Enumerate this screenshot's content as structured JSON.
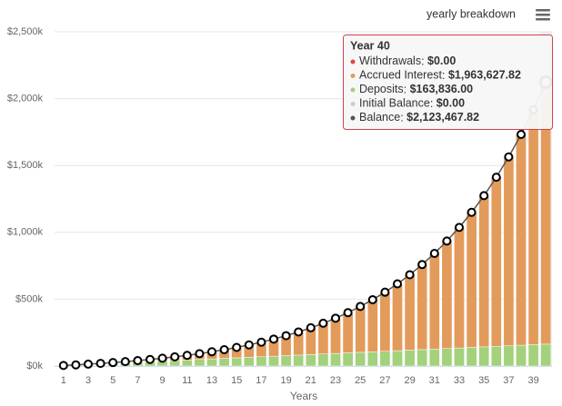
{
  "chart_data": {
    "type": "bar",
    "title": "yearly breakdown",
    "x_label": "Years",
    "categories": [
      1,
      null,
      3,
      null,
      5,
      null,
      7,
      null,
      9,
      null,
      11,
      null,
      13,
      null,
      15,
      null,
      17,
      null,
      19,
      null,
      21,
      null,
      23,
      null,
      25,
      null,
      27,
      null,
      29,
      null,
      31,
      null,
      33,
      null,
      35,
      null,
      37,
      null,
      39,
      null
    ],
    "ylim": [
      0,
      2500000
    ],
    "yticks": [
      {
        "value": 0,
        "label": "$0k"
      },
      {
        "value": 500000,
        "label": "$500k"
      },
      {
        "value": 1000000,
        "label": "$1,000k"
      },
      {
        "value": 1500000,
        "label": "$1,500k"
      },
      {
        "value": 2000000,
        "label": "$2,000k"
      },
      {
        "value": 2500000,
        "label": "$2,500k"
      }
    ],
    "grid": true,
    "series": [
      {
        "name": "Withdrawals",
        "color": "#e4463c",
        "kind": "bar",
        "values": [
          0,
          0,
          0,
          0,
          0,
          0,
          0,
          0,
          0,
          0,
          0,
          0,
          0,
          0,
          0,
          0,
          0,
          0,
          0,
          0,
          0,
          0,
          0,
          0,
          0,
          0,
          0,
          0,
          0,
          0,
          0,
          0,
          0,
          0,
          0,
          0,
          0,
          0,
          0,
          0
        ]
      },
      {
        "name": "Accrued Interest",
        "color": "#e39b5b",
        "kind": "bar",
        "values": [
          124,
          688,
          1742,
          3336,
          5500,
          8364,
          11938,
          16312,
          21576,
          27820,
          35144,
          43658,
          53502,
          64796,
          77710,
          92404,
          109068,
          127892,
          149136,
          173020,
          199834,
          229888,
          263512,
          301096,
          343000,
          389804,
          441808,
          499812,
          564316,
          635920,
          715524,
          803928,
          901832,
          1010636,
          1131140,
          1264644,
          1412648,
          1576552,
          1758056,
          1963627.82
        ]
      },
      {
        "name": "Deposits",
        "color": "#a3d17c",
        "kind": "bar",
        "values": [
          4096,
          8192,
          12288,
          16384,
          20480,
          24576,
          28672,
          32768,
          36864,
          40960,
          45056,
          49152,
          53248,
          57344,
          61440,
          65536,
          69632,
          73728,
          77824,
          81920,
          86016,
          90112,
          94208,
          98304,
          102400,
          106496,
          110592,
          114688,
          118784,
          122880,
          126976,
          131072,
          135168,
          139264,
          143360,
          147456,
          151552,
          155648,
          159744,
          163836
        ]
      },
      {
        "name": "Initial Balance",
        "color": "#cccccc",
        "kind": "bar",
        "values": [
          0,
          0,
          0,
          0,
          0,
          0,
          0,
          0,
          0,
          0,
          0,
          0,
          0,
          0,
          0,
          0,
          0,
          0,
          0,
          0,
          0,
          0,
          0,
          0,
          0,
          0,
          0,
          0,
          0,
          0,
          0,
          0,
          0,
          0,
          0,
          0,
          0,
          0,
          0,
          0
        ]
      },
      {
        "name": "Balance",
        "color": "#555555",
        "kind": "line",
        "values": [
          4220,
          8880,
          14030,
          19720,
          25980,
          32940,
          40610,
          49080,
          58440,
          68780,
          80200,
          92810,
          106750,
          122140,
          139150,
          157940,
          178700,
          201620,
          226960,
          254940,
          285850,
          320000,
          357720,
          399400,
          445400,
          496300,
          552400,
          614500,
          683100,
          758800,
          842500,
          935000,
          1037000,
          1149900,
          1274500,
          1412100,
          1564200,
          1732200,
          1917800,
          2123467.82
        ]
      }
    ],
    "tooltip": {
      "title": "Year 40",
      "labels": [
        "$0.00",
        "$1,963,627.82",
        "$163,836.00",
        "$0.00",
        "$2,123,467.82"
      ]
    }
  }
}
